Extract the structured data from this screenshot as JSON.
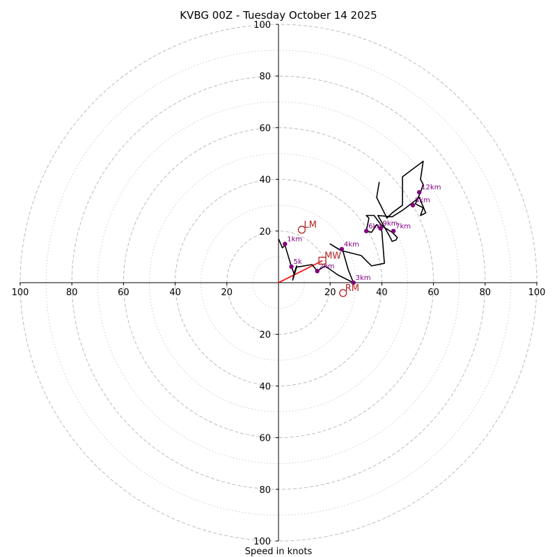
{
  "chart_data": {
    "type": "line",
    "title": "KVBG 00Z - Tuesday October 14 2025",
    "xlabel": "Speed in knots",
    "ylabel": "",
    "xlim": [
      -100,
      100
    ],
    "ylim": [
      -100,
      100
    ],
    "rings_major": [
      20,
      40,
      60,
      80,
      100
    ],
    "rings_minor": [
      10,
      30,
      50,
      70,
      90
    ],
    "x_ticks": [
      {
        "value": -100,
        "label": "100"
      },
      {
        "value": -80,
        "label": "80"
      },
      {
        "value": -60,
        "label": "60"
      },
      {
        "value": -40,
        "label": "40"
      },
      {
        "value": -20,
        "label": "20"
      },
      {
        "value": 20,
        "label": "20"
      },
      {
        "value": 40,
        "label": "40"
      },
      {
        "value": 60,
        "label": "60"
      },
      {
        "value": 80,
        "label": "80"
      },
      {
        "value": 100,
        "label": "100"
      }
    ],
    "y_ticks": [
      {
        "value": 100,
        "label": "100"
      },
      {
        "value": 80,
        "label": "80"
      },
      {
        "value": 60,
        "label": "60"
      },
      {
        "value": 40,
        "label": "40"
      },
      {
        "value": 20,
        "label": "20"
      },
      {
        "value": -20,
        "label": "20"
      },
      {
        "value": -40,
        "label": "40"
      },
      {
        "value": -60,
        "label": "60"
      },
      {
        "value": -80,
        "label": "80"
      },
      {
        "value": -100,
        "label": "100"
      }
    ],
    "hodograph": [
      [
        0,
        17
      ],
      [
        1.5,
        13.5
      ],
      [
        2.5,
        14.5
      ],
      [
        5,
        6.2
      ],
      [
        6,
        3.5
      ],
      [
        7,
        6.5
      ],
      [
        6,
        3.5
      ],
      [
        5.5,
        1
      ],
      [
        7,
        6
      ],
      [
        13,
        7
      ],
      [
        15,
        4.5
      ],
      [
        18,
        6.5
      ],
      [
        23,
        3
      ],
      [
        29,
        0
      ],
      [
        27,
        5
      ],
      [
        25,
        12
      ],
      [
        20,
        15
      ],
      [
        24,
        12.5
      ],
      [
        26,
        12
      ],
      [
        32,
        10.5
      ],
      [
        36,
        6.5
      ],
      [
        41,
        7.5
      ],
      [
        40,
        20
      ],
      [
        38,
        22.5
      ],
      [
        36,
        19.5
      ],
      [
        34,
        20
      ],
      [
        35,
        25
      ],
      [
        34,
        26
      ],
      [
        37,
        26
      ],
      [
        40,
        22
      ],
      [
        44,
        19.5
      ],
      [
        46,
        17.5
      ],
      [
        45.5,
        16.5
      ],
      [
        44,
        16
      ],
      [
        43,
        18
      ],
      [
        38.5,
        26
      ],
      [
        44,
        25.5
      ],
      [
        48,
        28
      ],
      [
        54.5,
        33
      ],
      [
        57,
        27
      ],
      [
        55,
        26
      ],
      [
        56,
        29
      ],
      [
        53,
        30.5
      ],
      [
        55,
        35
      ],
      [
        56,
        38
      ],
      [
        55,
        40
      ],
      [
        56,
        47
      ],
      [
        48,
        41
      ],
      [
        48,
        30
      ],
      [
        44,
        27
      ],
      [
        42,
        25
      ],
      [
        38,
        33
      ],
      [
        39,
        39
      ]
    ],
    "height_markers": [
      {
        "label": "1km",
        "x": 2.5,
        "y": 15
      },
      {
        "label": "2km",
        "x": 15,
        "y": 4.5
      },
      {
        "label": "3km",
        "x": 29,
        "y": 0
      },
      {
        "label": "4km",
        "x": 24.5,
        "y": 13
      },
      {
        "label": "5k",
        "x": 5,
        "y": 6.2
      },
      {
        "label": "6km",
        "x": 34,
        "y": 20
      },
      {
        "label": "7km",
        "x": 44.5,
        "y": 20
      },
      {
        "label": "8km",
        "x": 52,
        "y": 30
      },
      {
        "label": "9km",
        "x": 39.5,
        "y": 21
      },
      {
        "label": "12km",
        "x": 54.5,
        "y": 35
      }
    ],
    "storm_motion": [
      {
        "label": "LM",
        "x": 9,
        "y": 20.5,
        "marker": "circle"
      },
      {
        "label": "MW",
        "x": 17,
        "y": 8.5,
        "marker": "square"
      },
      {
        "label": "RM",
        "x": 25,
        "y": -4,
        "marker": "circle"
      }
    ],
    "mean_wind_vector": {
      "from": [
        0,
        0
      ],
      "to": [
        17,
        8.5
      ]
    },
    "colors": {
      "hodograph": "#000000",
      "markers": "#800080",
      "storm_motion": "#b22222",
      "vector": "#ff0000",
      "grid": "#bbbbbb"
    }
  }
}
